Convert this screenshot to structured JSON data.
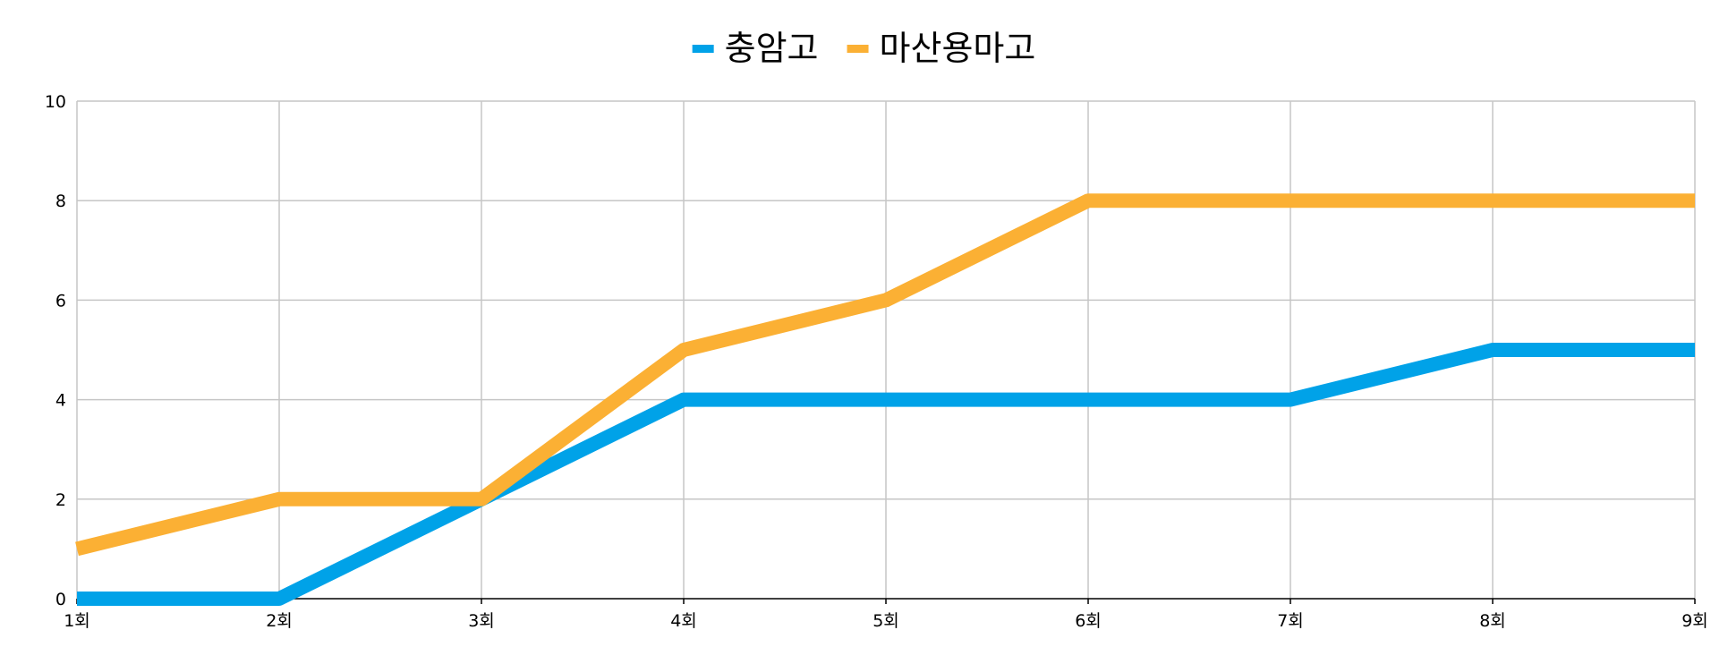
{
  "chart_data": {
    "type": "line",
    "title": "",
    "xlabel": "",
    "ylabel": "",
    "categories": [
      "1회",
      "2회",
      "3회",
      "4회",
      "5회",
      "6회",
      "7회",
      "8회",
      "9회"
    ],
    "y_ticks": [
      "0",
      "2",
      "4",
      "6",
      "8",
      "10"
    ],
    "ylim": [
      0,
      10
    ],
    "grid": true,
    "legend_position": "top",
    "series": [
      {
        "name": "충암고",
        "color": "#00a2e8",
        "values": [
          0,
          0,
          2,
          4,
          4,
          4,
          4,
          5,
          5
        ]
      },
      {
        "name": "마산용마고",
        "color": "#fbb034",
        "values": [
          1,
          2,
          2,
          5,
          6,
          8,
          8,
          8,
          8
        ]
      }
    ]
  }
}
